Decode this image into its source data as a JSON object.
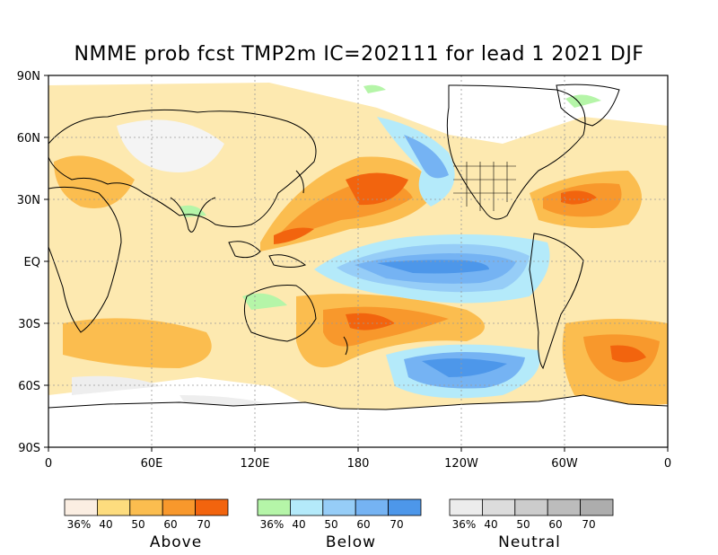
{
  "title": "NMME prob fcst TMP2m IC=202111 for lead 1 2021 DJF",
  "lat_labels": [
    "90N",
    "60N",
    "30N",
    "EQ",
    "30S",
    "60S",
    "90S"
  ],
  "lon_labels": [
    "0",
    "60E",
    "120E",
    "180",
    "120W",
    "60W",
    "0"
  ],
  "legends": [
    {
      "caption": "Above",
      "ticks": [
        "36%",
        "40",
        "50",
        "60",
        "70"
      ],
      "colors": [
        "#fbeee2",
        "#fddc7e",
        "#fbbd4f",
        "#f8982c",
        "#f2640e"
      ]
    },
    {
      "caption": "Below",
      "ticks": [
        "36%",
        "40",
        "50",
        "60",
        "70"
      ],
      "colors": [
        "#b5f5a8",
        "#b4eafa",
        "#96cdf7",
        "#75b3f3",
        "#4d97ea"
      ]
    },
    {
      "caption": "Neutral",
      "ticks": [
        "36%",
        "40",
        "50",
        "60",
        "70"
      ],
      "colors": [
        "#ececec",
        "#dcdcdc",
        "#cccccc",
        "#bcbcbc",
        "#adadad"
      ]
    }
  ],
  "colors": {
    "above_base": "#fde9b0",
    "below_base": "#b8e4fa",
    "neutral_base": "#eeeeee",
    "land_outline": "#000000",
    "grid": "#999999"
  }
}
